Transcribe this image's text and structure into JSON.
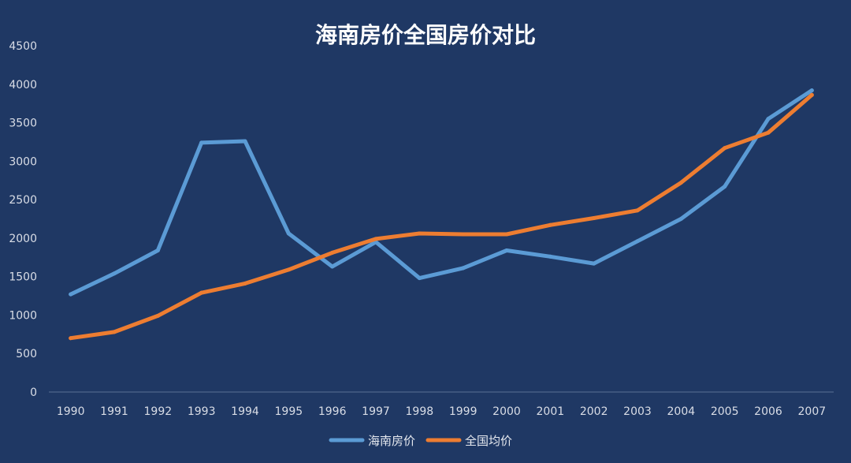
{
  "chart_data": {
    "type": "line",
    "title": "海南房价全国房价对比",
    "xlabel": "",
    "ylabel": "",
    "ylim": [
      0,
      4500
    ],
    "yticks": [
      0,
      500,
      1000,
      1500,
      2000,
      2500,
      3000,
      3500,
      4000,
      4500
    ],
    "categories": [
      "1990",
      "1991",
      "1992",
      "1993",
      "1994",
      "1995",
      "1996",
      "1997",
      "1998",
      "1999",
      "2000",
      "2001",
      "2002",
      "2003",
      "2004",
      "2005",
      "2006",
      "2007"
    ],
    "grid": false,
    "legend_position": "bottom",
    "series": [
      {
        "name": "海南房价",
        "color": "#5b9bd5",
        "values": [
          1270,
          1540,
          1840,
          3240,
          3260,
          2060,
          1630,
          1950,
          1480,
          1610,
          1840,
          1760,
          1670,
          1960,
          2250,
          2670,
          3550,
          3920
        ]
      },
      {
        "name": "全国均价",
        "color": "#ed7d31",
        "values": [
          700,
          780,
          990,
          1290,
          1410,
          1590,
          1810,
          1990,
          2060,
          2050,
          2050,
          2170,
          2260,
          2360,
          2720,
          3170,
          3370,
          3860
        ]
      }
    ]
  }
}
